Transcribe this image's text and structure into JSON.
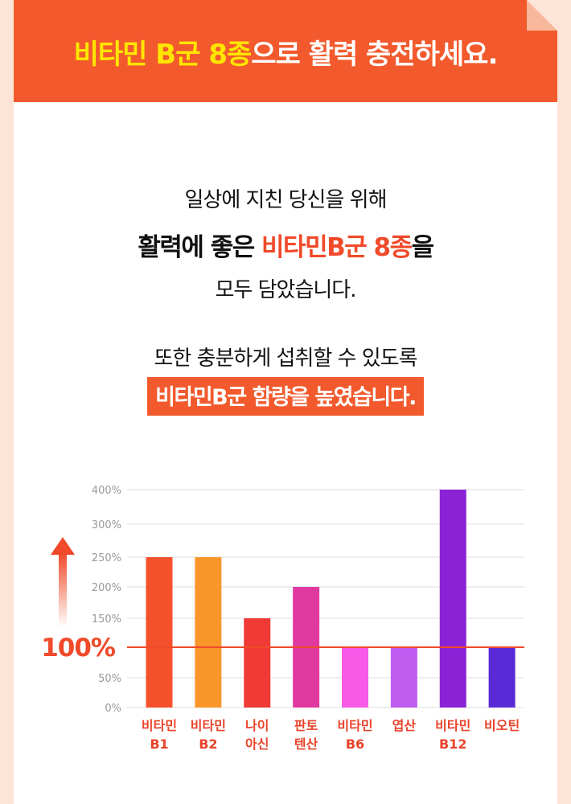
{
  "banner": {
    "title_part1": "비타민 B군 8종",
    "title_part2": "으로 활력 충전하세요."
  },
  "intro": {
    "line1": "일상에 지친 당신을 위해",
    "line2_part1": "활력에 좋은 ",
    "line2_highlight": "비타민B군 8종",
    "line2_part3": "을",
    "line3": "모두 담았습니다.",
    "line4": "또한 충분하게 섭취할 수 있도록",
    "line5": "비타민B군 함량을 높였습니다."
  },
  "colors": {
    "banner": "#f25a2d",
    "highlight_text": "#ffe600",
    "accent_red": "#f04a2a",
    "background": "#fde4d7"
  },
  "chart_data": {
    "type": "bar",
    "categories": [
      [
        "비타민",
        "B1"
      ],
      [
        "비타민",
        "B2"
      ],
      [
        "나이",
        "아신"
      ],
      [
        "판토",
        "텐산"
      ],
      [
        "비타민",
        "B6"
      ],
      [
        "엽산",
        ""
      ],
      [
        "비타민",
        "B12"
      ],
      [
        "비오틴",
        ""
      ]
    ],
    "values": [
      250,
      250,
      150,
      200,
      100,
      100,
      400,
      100
    ],
    "bar_colors": [
      "#f5502c",
      "#f9962a",
      "#ef3a36",
      "#e03aa0",
      "#f65ae6",
      "#c05cf0",
      "#8a22d6",
      "#5a2ad6"
    ],
    "y_ticks": [
      {
        "value": 0,
        "label": "0%"
      },
      {
        "value": 50,
        "label": "50%"
      },
      {
        "value": 100,
        "label": ""
      },
      {
        "value": 150,
        "label": "150%"
      },
      {
        "value": 200,
        "label": "200%"
      },
      {
        "value": 250,
        "label": "250%"
      },
      {
        "value": 300,
        "label": "300%"
      },
      {
        "value": 400,
        "label": "400%"
      }
    ],
    "reference_line": {
      "value": 100,
      "label": "100%",
      "color": "#f04a2a"
    },
    "ylim": [
      0,
      400
    ],
    "grid": true,
    "arrow": "up"
  }
}
